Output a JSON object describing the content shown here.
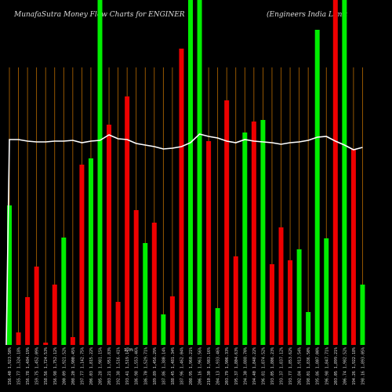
{
  "chart_data": {
    "type": "bar",
    "title": "MunafaSutra  Money Flow  Charts for ENGINER",
    "subtitle": "(Engineers India  Limit",
    "grid": "vertical",
    "colors": {
      "up": "#00ee00",
      "down": "#ee0000",
      "line": "#ffffff",
      "grid": "#b86a00",
      "background": "#000000"
    },
    "ylim": [
      0,
      440
    ],
    "bars": [
      {
        "color": "up",
        "value": 178
      },
      {
        "color": "down",
        "value": 16
      },
      {
        "color": "down",
        "value": 61
      },
      {
        "color": "down",
        "value": 100
      },
      {
        "color": "down",
        "value": 3
      },
      {
        "color": "down",
        "value": 77
      },
      {
        "color": "up",
        "value": 137
      },
      {
        "color": "down",
        "value": 10
      },
      {
        "color": "down",
        "value": 230
      },
      {
        "color": "up",
        "value": 238
      },
      {
        "color": "up",
        "value": 440
      },
      {
        "color": "down",
        "value": 281
      },
      {
        "color": "down",
        "value": 55
      },
      {
        "color": "down",
        "value": 317
      },
      {
        "color": "down",
        "value": 172
      },
      {
        "color": "up",
        "value": 130
      },
      {
        "color": "down",
        "value": 156
      },
      {
        "color": "up",
        "value": 39
      },
      {
        "color": "down",
        "value": 62
      },
      {
        "color": "down",
        "value": 378
      },
      {
        "color": "up",
        "value": 440
      },
      {
        "color": "up",
        "value": 440
      },
      {
        "color": "down",
        "value": 260
      },
      {
        "color": "up",
        "value": 47
      },
      {
        "color": "down",
        "value": 312
      },
      {
        "color": "down",
        "value": 113
      },
      {
        "color": "up",
        "value": 271
      },
      {
        "color": "down",
        "value": 285
      },
      {
        "color": "up",
        "value": 287
      },
      {
        "color": "down",
        "value": 103
      },
      {
        "color": "down",
        "value": 150
      },
      {
        "color": "down",
        "value": 108
      },
      {
        "color": "up",
        "value": 122
      },
      {
        "color": "up",
        "value": 42
      },
      {
        "color": "up",
        "value": 402
      },
      {
        "color": "up",
        "value": 136
      },
      {
        "color": "down",
        "value": 440
      },
      {
        "color": "up",
        "value": 440
      },
      {
        "color": "down",
        "value": 250
      },
      {
        "color": "up",
        "value": 77
      }
    ],
    "line": [
      262,
      262,
      260,
      259,
      259,
      260,
      260,
      261,
      258,
      260,
      261,
      268,
      263,
      262,
      257,
      255,
      253,
      250,
      251,
      253,
      258,
      269,
      266,
      264,
      260,
      258,
      262,
      260,
      259,
      258,
      256,
      258,
      259,
      261,
      265,
      266,
      260,
      255,
      249,
      252
    ],
    "tick_labels": [
      "156.40 1,923.50%",
      "155.77 1,324.18%",
      "156.78 1,484.19%",
      "159.75 1,452.09%",
      "158.56 1,724.53%",
      "156.98 1,752.12%",
      "200.09 1,921.52%",
      "208.20 1,900.45%",
      "197.77 1,142.75%",
      "206.03 1,815.22%",
      "205.28 1,981.15%",
      "203.21 1,951.83%",
      "192.38 1,516.41%",
      "193.41 1,519.14%",
      "186.98 1,553.46%",
      "186.70 1,529.71%",
      "189.89 1,456.29%",
      "187.86 1,380.14%",
      "188.45 1,481.34%",
      "187.96 1,462.04%",
      "208.95 1,960.21%",
      "206.16 1,961.56%",
      "210.30 1,983.16%",
      "204.13 1,933.46%",
      "203.79 1,906.33%",
      "195.37 1,804.63%",
      "194.30 1,888.70%",
      "194.40 1,848.22%",
      "196.81 1,874.52%",
      "193.05 1,806.23%",
      "193.37 1,837.12%",
      "193.77 1,853.62%",
      "202.84 1,913.54%",
      "198.01 1,836.50%",
      "195.86 1,807.00%",
      "196.98 1,847.71%",
      "203.05 1,899.21%",
      "206.74 1,982.52%",
      "194.26 1,922.18%",
      "198.16 1,893.05%"
    ],
    "annotation": "1.0%"
  }
}
